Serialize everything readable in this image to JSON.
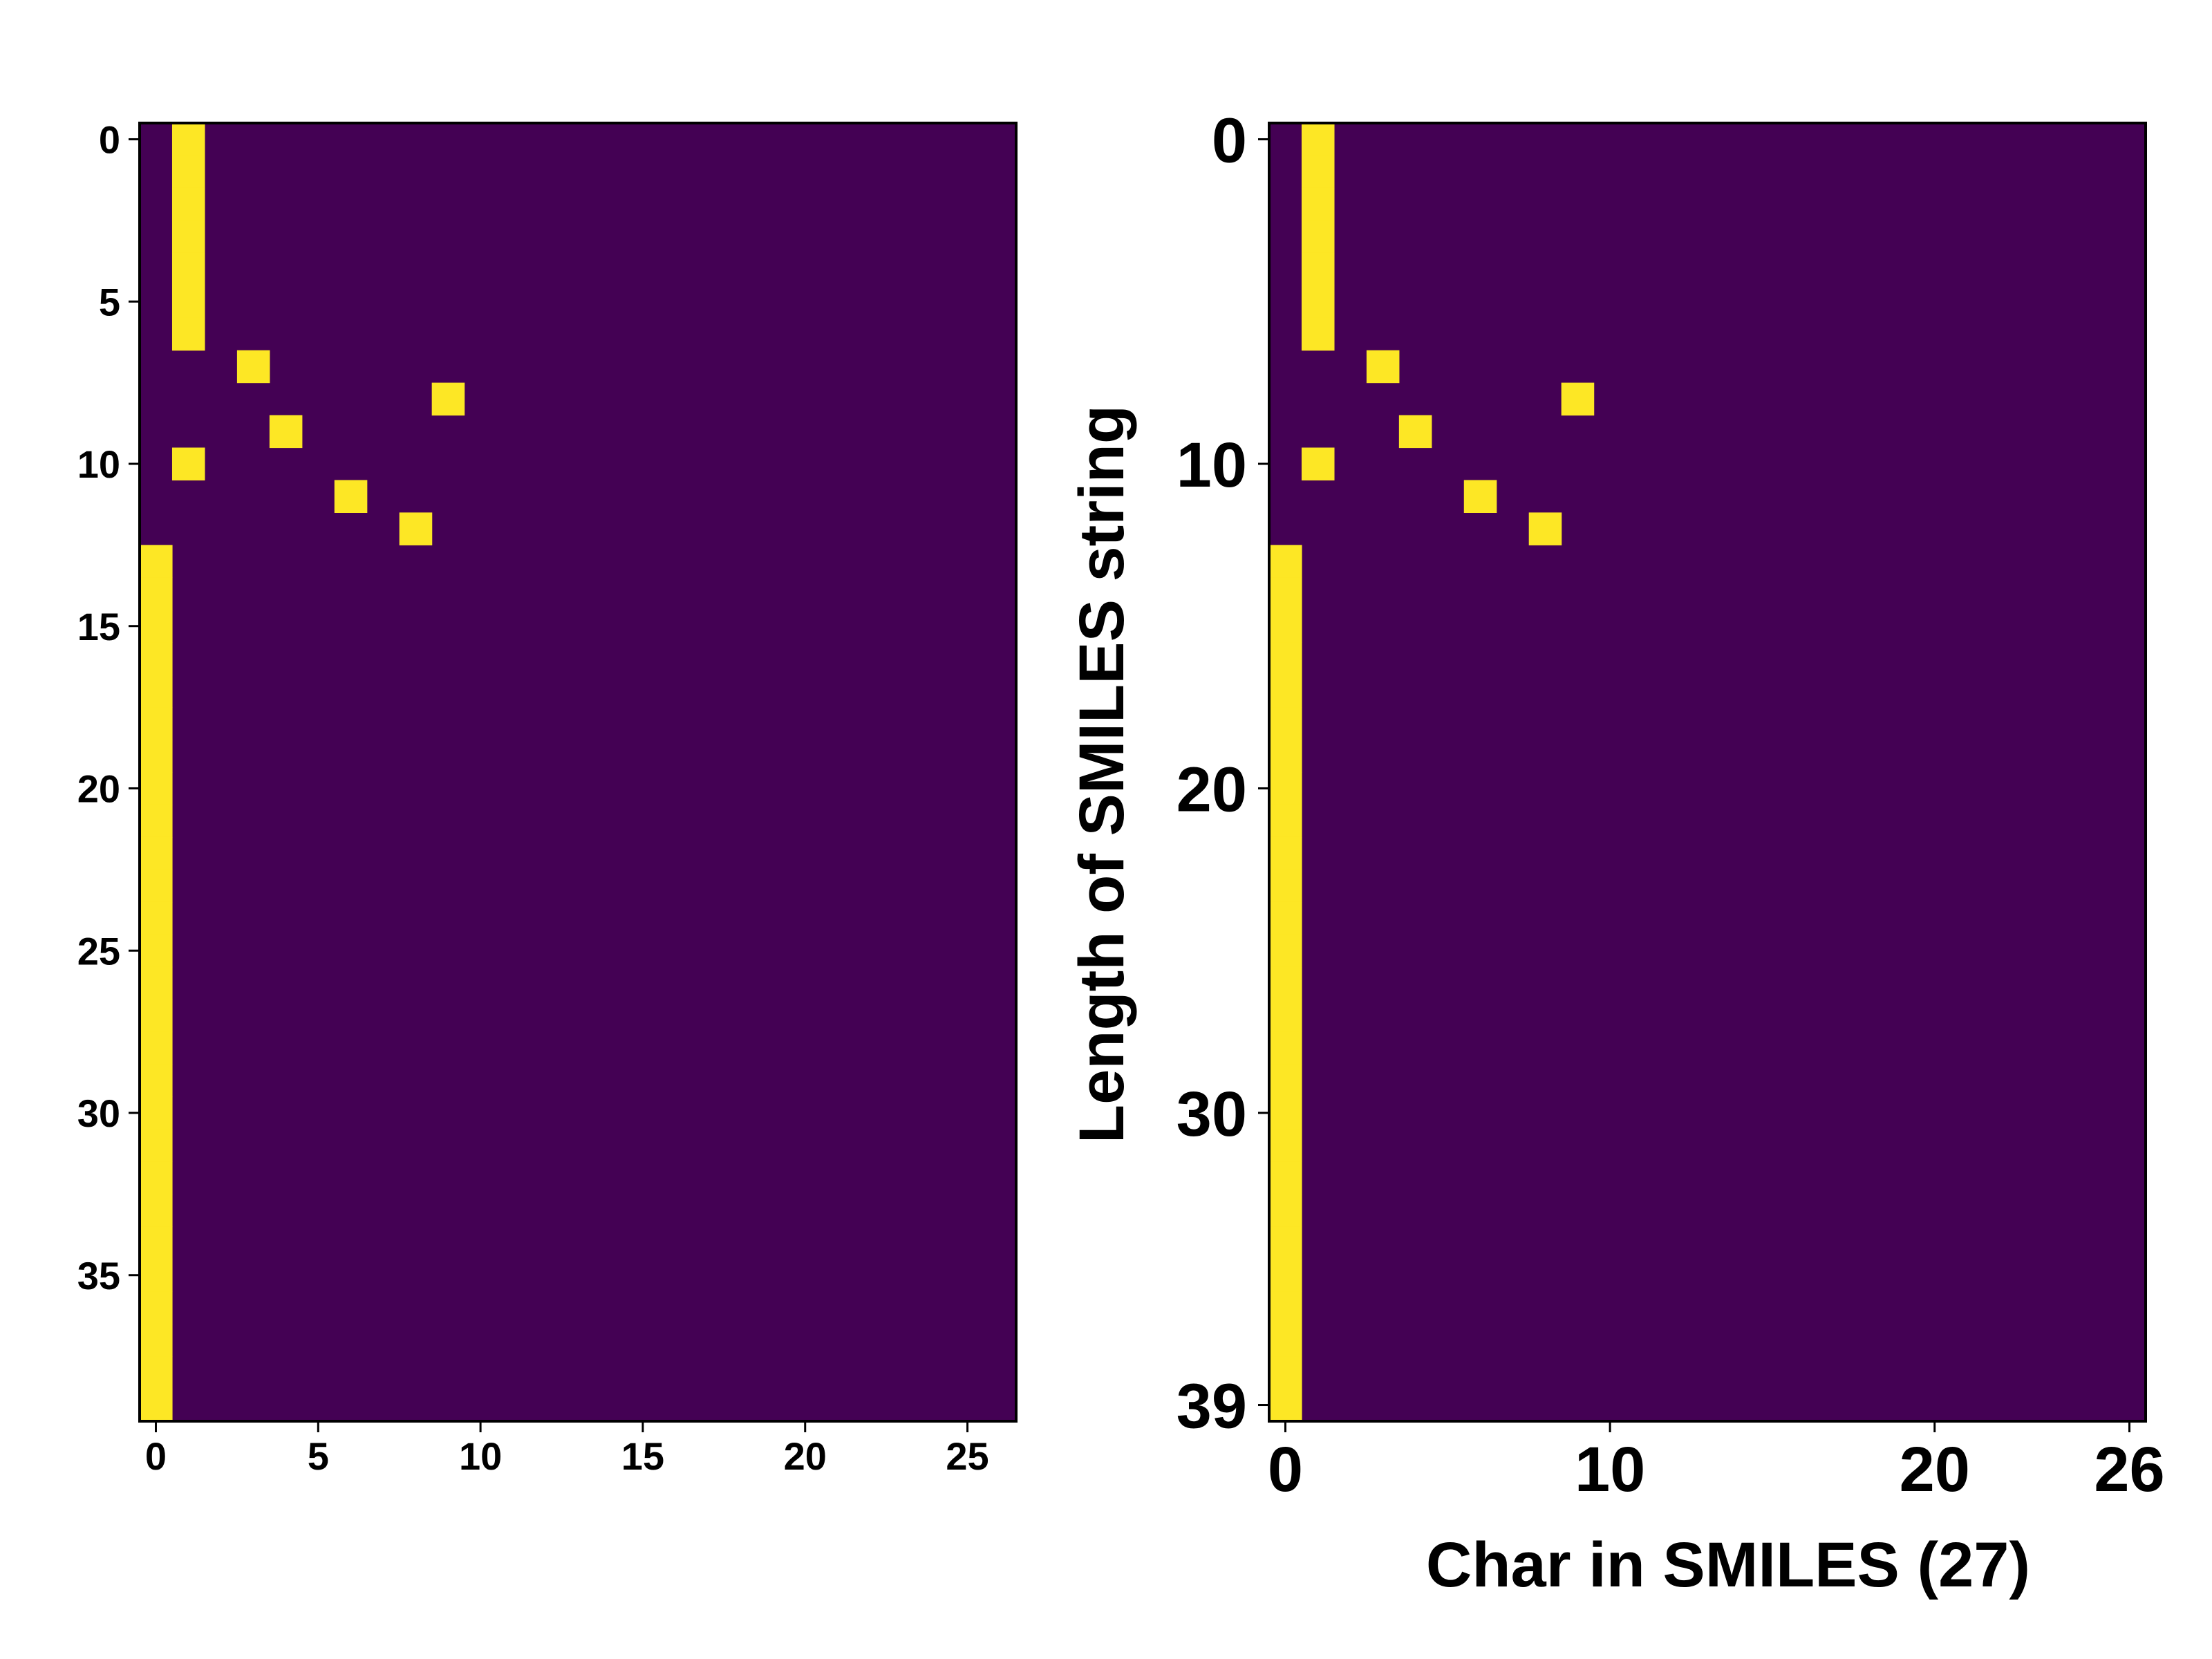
{
  "chart_data": [
    {
      "type": "heatmap",
      "title": "",
      "xlabel": "",
      "ylabel": "",
      "n_rows": 40,
      "n_cols": 27,
      "xlim": [
        -0.5,
        26.5
      ],
      "ylim": [
        39.5,
        -0.5
      ],
      "xticks": [
        0,
        5,
        10,
        15,
        20,
        25
      ],
      "yticks": [
        0,
        5,
        10,
        15,
        20,
        25,
        30,
        35
      ],
      "colormap": {
        "low": "#440154",
        "high": "#fde725"
      },
      "values_description": "one-hot matrix; active_cells lists [row, col] of value 1",
      "active_cells": [
        [
          0,
          1
        ],
        [
          1,
          1
        ],
        [
          2,
          1
        ],
        [
          3,
          1
        ],
        [
          4,
          1
        ],
        [
          5,
          1
        ],
        [
          6,
          1
        ],
        [
          7,
          3
        ],
        [
          8,
          9
        ],
        [
          9,
          4
        ],
        [
          10,
          1
        ],
        [
          11,
          6
        ],
        [
          12,
          8
        ],
        [
          13,
          0
        ],
        [
          14,
          0
        ],
        [
          15,
          0
        ],
        [
          16,
          0
        ],
        [
          17,
          0
        ],
        [
          18,
          0
        ],
        [
          19,
          0
        ],
        [
          20,
          0
        ],
        [
          21,
          0
        ],
        [
          22,
          0
        ],
        [
          23,
          0
        ],
        [
          24,
          0
        ],
        [
          25,
          0
        ],
        [
          26,
          0
        ],
        [
          27,
          0
        ],
        [
          28,
          0
        ],
        [
          29,
          0
        ],
        [
          30,
          0
        ],
        [
          31,
          0
        ],
        [
          32,
          0
        ],
        [
          33,
          0
        ],
        [
          34,
          0
        ],
        [
          35,
          0
        ],
        [
          36,
          0
        ],
        [
          37,
          0
        ],
        [
          38,
          0
        ],
        [
          39,
          0
        ]
      ],
      "grid": false,
      "legend": "none"
    },
    {
      "type": "heatmap",
      "title": "",
      "xlabel": "Char in SMILES (27)",
      "ylabel": "Length of SMILES string",
      "n_rows": 40,
      "n_cols": 27,
      "xlim": [
        -0.5,
        26.5
      ],
      "ylim": [
        39.5,
        -0.5
      ],
      "xticks": [
        0,
        10,
        20,
        26
      ],
      "yticks": [
        0,
        10,
        20,
        30,
        39
      ],
      "colormap": {
        "low": "#440154",
        "high": "#fde725"
      },
      "values_description": "one-hot matrix; active_cells lists [row, col] of value 1",
      "active_cells": [
        [
          0,
          1
        ],
        [
          1,
          1
        ],
        [
          2,
          1
        ],
        [
          3,
          1
        ],
        [
          4,
          1
        ],
        [
          5,
          1
        ],
        [
          6,
          1
        ],
        [
          7,
          3
        ],
        [
          8,
          9
        ],
        [
          9,
          4
        ],
        [
          10,
          1
        ],
        [
          11,
          6
        ],
        [
          12,
          8
        ],
        [
          13,
          0
        ],
        [
          14,
          0
        ],
        [
          15,
          0
        ],
        [
          16,
          0
        ],
        [
          17,
          0
        ],
        [
          18,
          0
        ],
        [
          19,
          0
        ],
        [
          20,
          0
        ],
        [
          21,
          0
        ],
        [
          22,
          0
        ],
        [
          23,
          0
        ],
        [
          24,
          0
        ],
        [
          25,
          0
        ],
        [
          26,
          0
        ],
        [
          27,
          0
        ],
        [
          28,
          0
        ],
        [
          29,
          0
        ],
        [
          30,
          0
        ],
        [
          31,
          0
        ],
        [
          32,
          0
        ],
        [
          33,
          0
        ],
        [
          34,
          0
        ],
        [
          35,
          0
        ],
        [
          36,
          0
        ],
        [
          37,
          0
        ],
        [
          38,
          0
        ],
        [
          39,
          0
        ]
      ],
      "grid": false,
      "legend": "none"
    }
  ]
}
